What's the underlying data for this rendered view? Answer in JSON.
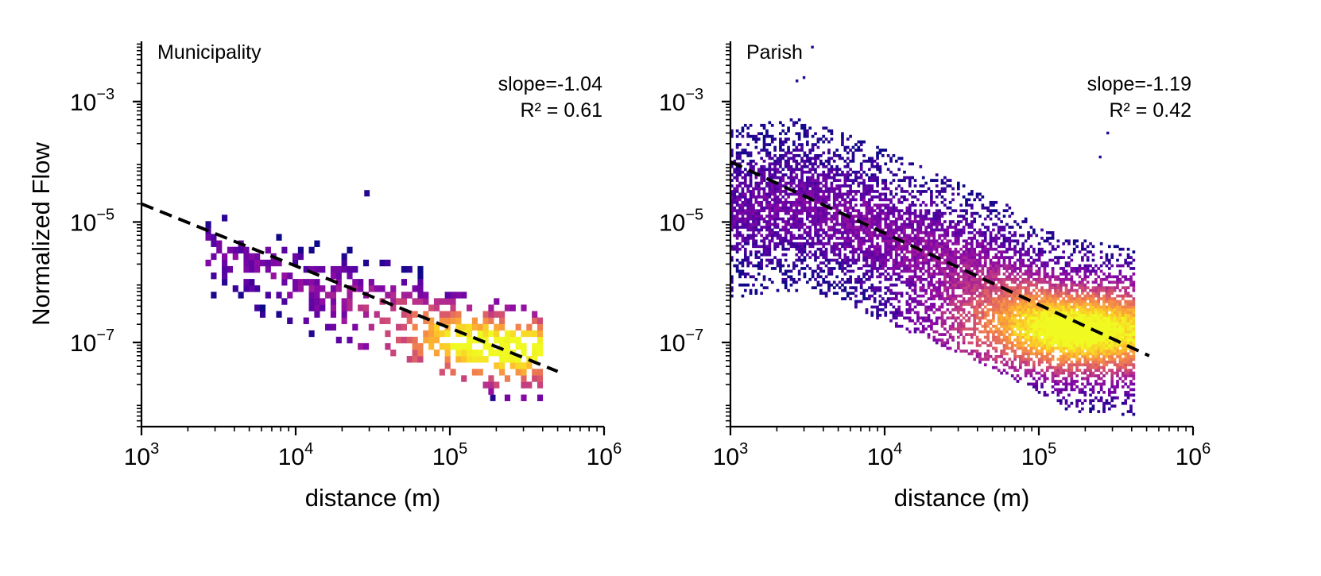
{
  "chart_data": [
    {
      "type": "heatmap",
      "title": "Municipality",
      "xlabel": "distance (m)",
      "ylabel": "Normalized Flow",
      "xscale": "log",
      "yscale": "log",
      "xlim": [
        1000,
        1000000
      ],
      "ylim": [
        4e-09,
        0.01
      ],
      "x_ticks": [
        {
          "base": "10",
          "exp": "3"
        },
        {
          "base": "10",
          "exp": "4"
        },
        {
          "base": "10",
          "exp": "5"
        },
        {
          "base": "10",
          "exp": "6"
        }
      ],
      "y_ticks": [
        {
          "base": "10",
          "exp": "−3"
        },
        {
          "base": "10",
          "exp": "−5"
        },
        {
          "base": "10",
          "exp": "−7"
        }
      ],
      "x_tick_values": [
        1000,
        10000,
        100000,
        1000000
      ],
      "y_tick_values": [
        0.001,
        1e-05,
        1e-07
      ],
      "fit_line": {
        "x": [
          1000,
          500000
        ],
        "y": [
          2e-05,
          3.3e-08
        ],
        "style": "dashed",
        "color": "#000000"
      },
      "annotation": {
        "slope": "slope=-1.04",
        "r2": "R² = 0.61"
      },
      "density": {
        "x_range": [
          2600,
          400000
        ],
        "bins_x": 62,
        "bins_y": 60,
        "center": [
          [
            3500,
            3e-06
          ],
          [
            10000,
            1e-06
          ],
          [
            50000,
            3.5e-07
          ],
          [
            150000,
            1e-07
          ],
          [
            230000,
            7e-08
          ]
        ],
        "spread_decades": 0.42,
        "peak_x": 180000,
        "peak_y": 8e-08,
        "fill_fraction": 0.45,
        "colormap": "plasma"
      },
      "outliers": [
        [
          29000,
          3e-05
        ],
        [
          190000,
          1.2e-08
        ]
      ]
    },
    {
      "type": "heatmap",
      "title": "Parish",
      "xlabel": "distance (m)",
      "ylabel": "",
      "xscale": "log",
      "yscale": "log",
      "xlim": [
        1000,
        1000000
      ],
      "ylim": [
        4e-09,
        0.01
      ],
      "x_ticks": [
        {
          "base": "10",
          "exp": "3"
        },
        {
          "base": "10",
          "exp": "4"
        },
        {
          "base": "10",
          "exp": "5"
        },
        {
          "base": "10",
          "exp": "6"
        }
      ],
      "y_ticks": [
        {
          "base": "10",
          "exp": "−3"
        },
        {
          "base": "10",
          "exp": "−5"
        },
        {
          "base": "10",
          "exp": "−7"
        }
      ],
      "x_tick_values": [
        1000,
        10000,
        100000,
        1000000
      ],
      "y_tick_values": [
        0.001,
        1e-05,
        1e-07
      ],
      "fit_line": {
        "x": [
          1000,
          520000
        ],
        "y": [
          0.0001,
          6e-08
        ],
        "style": "dashed",
        "color": "#000000"
      },
      "annotation": {
        "slope": "slope=-1.19",
        "r2": "R² = 0.42"
      },
      "density": {
        "x_range": [
          1000,
          420000
        ],
        "bins_x": 150,
        "bins_y": 140,
        "center": [
          [
            1000,
            1.5e-05
          ],
          [
            3000,
            2e-05
          ],
          [
            10000,
            6e-06
          ],
          [
            50000,
            1e-06
          ],
          [
            150000,
            2e-07
          ],
          [
            400000,
            1.5e-07
          ]
        ],
        "spread_decades": 0.75,
        "peak_x": 140000,
        "peak_y": 1.5e-07,
        "fill_fraction": 0.8,
        "colormap": "plasma"
      },
      "outliers": [
        [
          3000,
          0.0025
        ],
        [
          2700,
          0.0022
        ],
        [
          280000,
          0.0003
        ],
        [
          250000,
          0.00012
        ],
        [
          3400,
          0.008
        ]
      ]
    }
  ]
}
